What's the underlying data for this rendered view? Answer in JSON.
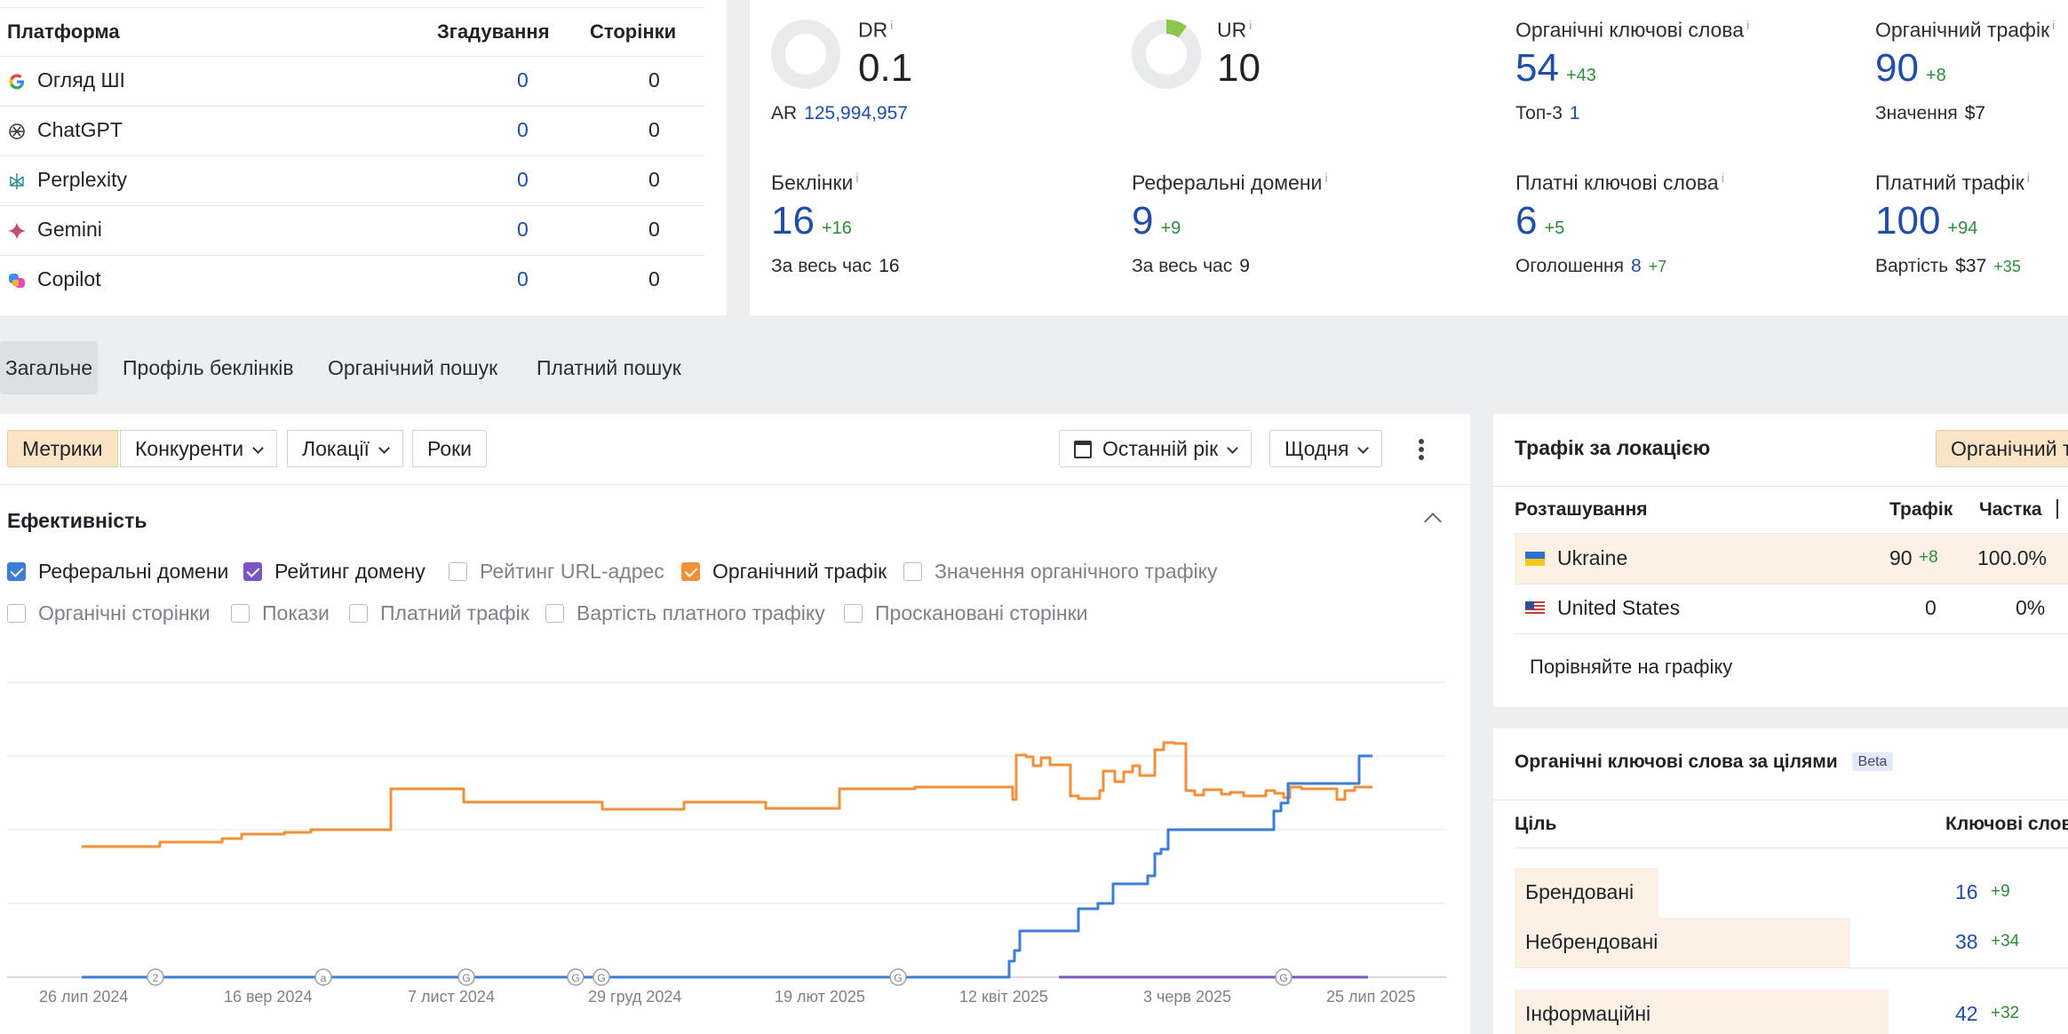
{
  "platforms": {
    "headers": {
      "platform": "Платформа",
      "mentions": "Згадування",
      "pages": "Сторінки"
    },
    "rows": [
      {
        "name": "Огляд ШІ",
        "icon": "google-icon",
        "mentions": "0",
        "pages": "0"
      },
      {
        "name": "ChatGPT",
        "icon": "chatgpt-icon",
        "mentions": "0",
        "pages": "0"
      },
      {
        "name": "Perplexity",
        "icon": "perplexity-icon",
        "mentions": "0",
        "pages": "0"
      },
      {
        "name": "Gemini",
        "icon": "gemini-icon",
        "mentions": "0",
        "pages": "0"
      },
      {
        "name": "Copilot",
        "icon": "copilot-icon",
        "mentions": "0",
        "pages": "0"
      }
    ]
  },
  "metrics": {
    "dr": {
      "label": "DR",
      "info": "i",
      "value": "0.1",
      "ar_label": "AR",
      "ar_value": "125,994,957",
      "donut_fraction": 0.001
    },
    "ur": {
      "label": "UR",
      "info": "i",
      "value": "10",
      "donut_fraction": 0.1
    },
    "org_kw": {
      "label": "Органічні ключові слова",
      "info": "i",
      "value": "54",
      "delta": "+43",
      "sub_label": "Топ-3",
      "sub_value": "1"
    },
    "org_traffic": {
      "label": "Органічний трафік",
      "info": "i",
      "value": "90",
      "delta": "+8",
      "sub_label": "Значення",
      "sub_value": "$7"
    },
    "backlinks": {
      "label": "Беклінки",
      "info": "i",
      "value": "16",
      "delta": "+16",
      "sub_label": "За весь час",
      "sub_value": "16"
    },
    "ref_domains": {
      "label": "Реферальні домени",
      "info": "i",
      "value": "9",
      "delta": "+9",
      "sub_label": "За весь час",
      "sub_value": "9"
    },
    "paid_kw": {
      "label": "Платні ключові слова",
      "info": "i",
      "value": "6",
      "delta": "+5",
      "sub_label": "Оголошення",
      "sub_value": "8",
      "sub_delta": "+7"
    },
    "paid_traffic": {
      "label": "Платний трафік",
      "info": "i",
      "value": "100",
      "delta": "+94",
      "sub_label": "Вартість",
      "sub_value": "$37",
      "sub_delta": "+35"
    }
  },
  "tabs": [
    "Загальне",
    "Профіль беклінків",
    "Органічний пошук",
    "Платний пошук"
  ],
  "toolbar": {
    "metrics": "Метрики",
    "competitors": "Конкуренти",
    "locations": "Локації",
    "years": "Роки",
    "period": "Останній рік",
    "granularity": "Щодня"
  },
  "efficiency": {
    "title": "Ефективність",
    "checkboxes": [
      {
        "label": "Реферальні домени",
        "checked": true,
        "color": "#3b7dd8"
      },
      {
        "label": "Рейтинг домену",
        "checked": true,
        "color": "#7a55c4"
      },
      {
        "label": "Рейтинг URL-адрес",
        "checked": false
      },
      {
        "label": "Органічний трафік",
        "checked": true,
        "color": "#f0913a"
      },
      {
        "label": "Значення органічного трафіку",
        "checked": false
      },
      {
        "label": "Органічні сторінки",
        "checked": false
      },
      {
        "label": "Покази",
        "checked": false
      },
      {
        "label": "Платний трафік",
        "checked": false
      },
      {
        "label": "Вартість платного трафіку",
        "checked": false
      },
      {
        "label": "Проскановані сторінки",
        "checked": false
      }
    ]
  },
  "chart_data": {
    "type": "line",
    "x_ticks": [
      "26 лип 2024",
      "16 вер 2024",
      "7 лист 2024",
      "29 груд 2024",
      "19 лют 2025",
      "12 квіт 2025",
      "3 черв 2025",
      "25 лип 2025"
    ],
    "annotations": [
      "2",
      "a",
      "G",
      "G",
      "G",
      "G",
      "G"
    ],
    "series": [
      {
        "name": "Органічний трафік",
        "color": "#f0913a"
      },
      {
        "name": "Реферальні домени",
        "color": "#3b7dd8"
      },
      {
        "name": "Рейтинг домену",
        "color": "#7a55c4"
      }
    ],
    "grid": true
  },
  "location": {
    "title": "Трафік за локацією",
    "toggle": "Органічний т",
    "headers": {
      "location": "Розташування",
      "traffic": "Трафік",
      "share": "Частка"
    },
    "rows": [
      {
        "country": "Ukraine",
        "traffic": "90",
        "delta": "+8",
        "share": "100.0%",
        "bar": 1.0
      },
      {
        "country": "United States",
        "traffic": "0",
        "delta": "",
        "share": "0%",
        "bar": 0
      }
    ],
    "compare": "Порівняйте на графіку"
  },
  "intent": {
    "title": "Органічні ключові слова за цілями",
    "badge": "Beta",
    "headers": {
      "goal": "Ціль",
      "keywords": "Ключові слов"
    },
    "rows": [
      {
        "label": "Брендовані",
        "value": "16",
        "delta": "+9",
        "bar": 0.3
      },
      {
        "label": "Небрендовані",
        "value": "38",
        "delta": "+34",
        "bar": 0.7
      },
      {
        "label": "Інформаційні",
        "value": "42",
        "delta": "+32",
        "bar": 0.78
      }
    ]
  }
}
